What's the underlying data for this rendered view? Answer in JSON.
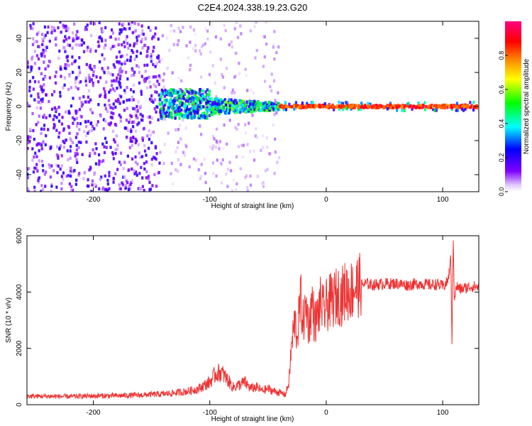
{
  "title": "C2E4.2024.338.19.23.G20",
  "chart_data": [
    {
      "type": "heatmap",
      "xlabel": "Height of straight line (km)",
      "ylabel": "Frequency (Hz)",
      "xlim": [
        -257,
        131
      ],
      "ylim": [
        -50,
        50
      ],
      "x_ticks": [
        -200,
        -100,
        0,
        100
      ],
      "y_ticks": [
        -40,
        -20,
        0,
        20,
        40
      ],
      "grid": false,
      "colorbar": {
        "label": "Normalized spectral amplitude",
        "range": [
          0,
          1
        ],
        "ticks": [
          0.0,
          0.2,
          0.4,
          0.6,
          0.8
        ],
        "colormap": [
          "#ffffff",
          "#8000ff",
          "#0000ff",
          "#00ffff",
          "#00ff00",
          "#ffff00",
          "#ff8000",
          "#ff0000",
          "#ff0080"
        ]
      },
      "regions": [
        {
          "x": [
            -257,
            -143
          ],
          "freq": [
            -50,
            50
          ],
          "amplitude": 0.15,
          "pattern": "broadband noise"
        },
        {
          "x": [
            -143,
            -40
          ],
          "freq": [
            -50,
            50
          ],
          "amplitude": 0.08,
          "pattern": "sparse noise"
        },
        {
          "x": [
            -143,
            -100
          ],
          "freq": [
            -7,
            10
          ],
          "amplitude": 0.45,
          "pattern": "spread signal"
        },
        {
          "x": [
            -100,
            -40
          ],
          "freq": [
            -5,
            5
          ],
          "amplitude": 0.45,
          "pattern": "narrowing signal"
        },
        {
          "x": [
            -40,
            131
          ],
          "freq": [
            -1,
            1
          ],
          "amplitude": 0.95,
          "pattern": "narrow carrier"
        }
      ]
    },
    {
      "type": "line",
      "xlabel": "Height of straight line (km)",
      "ylabel": "SNR (10 * v/v)",
      "xlim": [
        -257,
        131
      ],
      "ylim": [
        0,
        6000
      ],
      "x_ticks": [
        -200,
        -100,
        0,
        100
      ],
      "y_ticks": [
        0,
        2000,
        4000,
        6000
      ],
      "grid": false,
      "color": "#ee3333",
      "x": [
        -257,
        -240,
        -220,
        -200,
        -180,
        -160,
        -140,
        -130,
        -120,
        -110,
        -100,
        -95,
        -90,
        -85,
        -80,
        -75,
        -70,
        -65,
        -60,
        -55,
        -50,
        -45,
        -40,
        -35,
        -32,
        -30,
        -27,
        -25,
        -22,
        -20,
        -17,
        -15,
        -12,
        -10,
        -7,
        -5,
        -2,
        0,
        3,
        5,
        8,
        10,
        13,
        15,
        18,
        20,
        25,
        30,
        35,
        40,
        50,
        60,
        70,
        80,
        90,
        95,
        100,
        103,
        105,
        107,
        108,
        109,
        110,
        112,
        115,
        120,
        125,
        131
      ],
      "y": [
        300,
        300,
        290,
        310,
        320,
        340,
        380,
        420,
        470,
        560,
        800,
        1100,
        1150,
        900,
        620,
        700,
        800,
        580,
        620,
        500,
        560,
        480,
        430,
        360,
        800,
        2000,
        3000,
        2400,
        3800,
        2900,
        3500,
        2800,
        3700,
        2900,
        3200,
        3600,
        3300,
        3500,
        3650,
        3700,
        3800,
        3900,
        3800,
        4000,
        4050,
        4000,
        4200,
        4250,
        4300,
        4250,
        4300,
        4300,
        4250,
        4300,
        4250,
        4280,
        4200,
        4300,
        4500,
        5200,
        2200,
        6000,
        3800,
        4200,
        4100,
        4150,
        4200,
        4180
      ]
    }
  ]
}
